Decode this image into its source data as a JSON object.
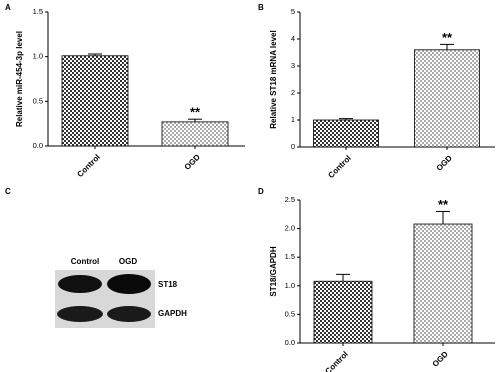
{
  "chart_data": [
    {
      "type": "bar",
      "panel": "A",
      "y_label": "Relative miR-454-3p level",
      "categories": [
        "Control",
        "OGD"
      ],
      "values": [
        1.01,
        0.27
      ],
      "errors": [
        0.02,
        0.03
      ],
      "colors": [
        "#333333",
        "#aaaaaa"
      ],
      "annotation": "**",
      "ylim": [
        0,
        1.5
      ],
      "yticks": [
        {
          "value": 0,
          "label": "0.0"
        },
        {
          "value": 0.5,
          "label": "0.5"
        },
        {
          "value": 1,
          "label": "1.0"
        },
        {
          "value": 1.5,
          "label": "1.5"
        }
      ]
    },
    {
      "type": "bar",
      "panel": "B",
      "y_label": "Relative ST18 mRNA level",
      "categories": [
        "Control",
        "OGD"
      ],
      "values": [
        1.0,
        3.6
      ],
      "errors": [
        0.05,
        0.2
      ],
      "colors": [
        "#333333",
        "#aaaaaa"
      ],
      "annotation": "**",
      "ylim": [
        0,
        5
      ],
      "yticks": [
        0,
        1,
        2,
        3,
        4,
        5
      ]
    },
    {
      "type": "bar",
      "panel": "D",
      "y_label": "ST18/GAPDH",
      "categories": [
        "Control",
        "OGD"
      ],
      "values": [
        1.08,
        2.08
      ],
      "errors": [
        0.12,
        0.22
      ],
      "colors": [
        "#333333",
        "#aaaaaa"
      ],
      "annotation": "**",
      "ylim": [
        0,
        2.5
      ],
      "yticks": [
        {
          "value": 0,
          "label": "0.0"
        },
        {
          "value": 0.5,
          "label": "0.5"
        },
        {
          "value": 1,
          "label": "1.0"
        },
        {
          "value": 1.5,
          "label": "1.5"
        },
        {
          "value": 2,
          "label": "2.0"
        },
        {
          "value": 2.5,
          "label": "2.5"
        }
      ]
    }
  ],
  "blot": {
    "panel": "C",
    "columns": [
      "Control",
      "OGD"
    ],
    "rows": [
      "ST18",
      "GAPDH"
    ]
  }
}
